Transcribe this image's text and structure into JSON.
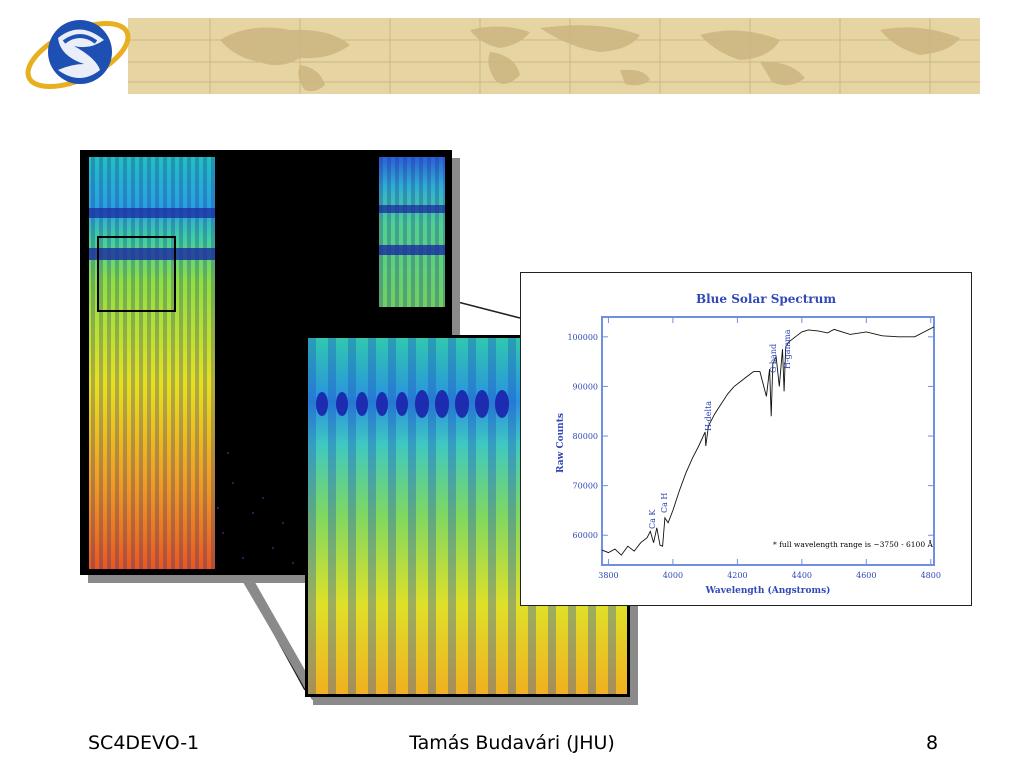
{
  "footer": {
    "left": "SC4DEVO-1",
    "center": "Tamás Budavári (JHU)",
    "page_number": "8"
  },
  "colors": {
    "banner_parchment": "#e6d5a3",
    "logo_blue": "#1e50b4",
    "logo_gold": "#e8b020",
    "chart_axis": "#6f8fe0",
    "chart_text": "#3048b8"
  },
  "icons": {
    "logo": "swirl-globe-logo",
    "banner": "world-map-banner"
  },
  "chart_data": {
    "type": "line",
    "title": "Blue Solar Spectrum",
    "xlabel": "Wavelength (Angstroms)",
    "ylabel": "Raw Counts",
    "xlim": [
      3780,
      4810
    ],
    "ylim": [
      54000,
      104000
    ],
    "xticks": [
      3800,
      4000,
      4200,
      4400,
      4600,
      4800
    ],
    "yticks": [
      60000,
      70000,
      80000,
      90000,
      100000
    ],
    "grid": false,
    "annotations": [
      "Ca K",
      "Ca H",
      "H-delta",
      "G band",
      "H-gamma",
      "* full wavelength range is ~3750 - 6100 Å"
    ],
    "series": [
      {
        "x": [
          3780,
          3800,
          3820,
          3840,
          3860,
          3880,
          3900,
          3920,
          3930,
          3940,
          3950,
          3960,
          3968,
          3975,
          3985,
          4000,
          4020,
          4040,
          4060,
          4080,
          4100,
          4102,
          4110,
          4130,
          4150,
          4170,
          4190,
          4210,
          4230,
          4250,
          4270,
          4290,
          4300,
          4305,
          4310,
          4320,
          4330,
          4340,
          4345,
          4350,
          4360,
          4380,
          4400,
          4420,
          4450,
          4480,
          4500,
          4550,
          4600,
          4650,
          4700,
          4750,
          4810
        ],
        "y": [
          57000,
          56500,
          57200,
          56000,
          57800,
          56800,
          58500,
          59500,
          60800,
          58500,
          61500,
          58000,
          57800,
          63500,
          62500,
          65000,
          69000,
          72500,
          75500,
          78000,
          80800,
          78000,
          82000,
          84500,
          86500,
          88500,
          90000,
          91000,
          92000,
          93000,
          93000,
          88000,
          93500,
          84000,
          94500,
          96000,
          90000,
          97500,
          89000,
          98000,
          99000,
          100000,
          101000,
          101400,
          101200,
          100800,
          101500,
          100500,
          101000,
          100200,
          100000,
          100000,
          102000
        ]
      }
    ]
  }
}
